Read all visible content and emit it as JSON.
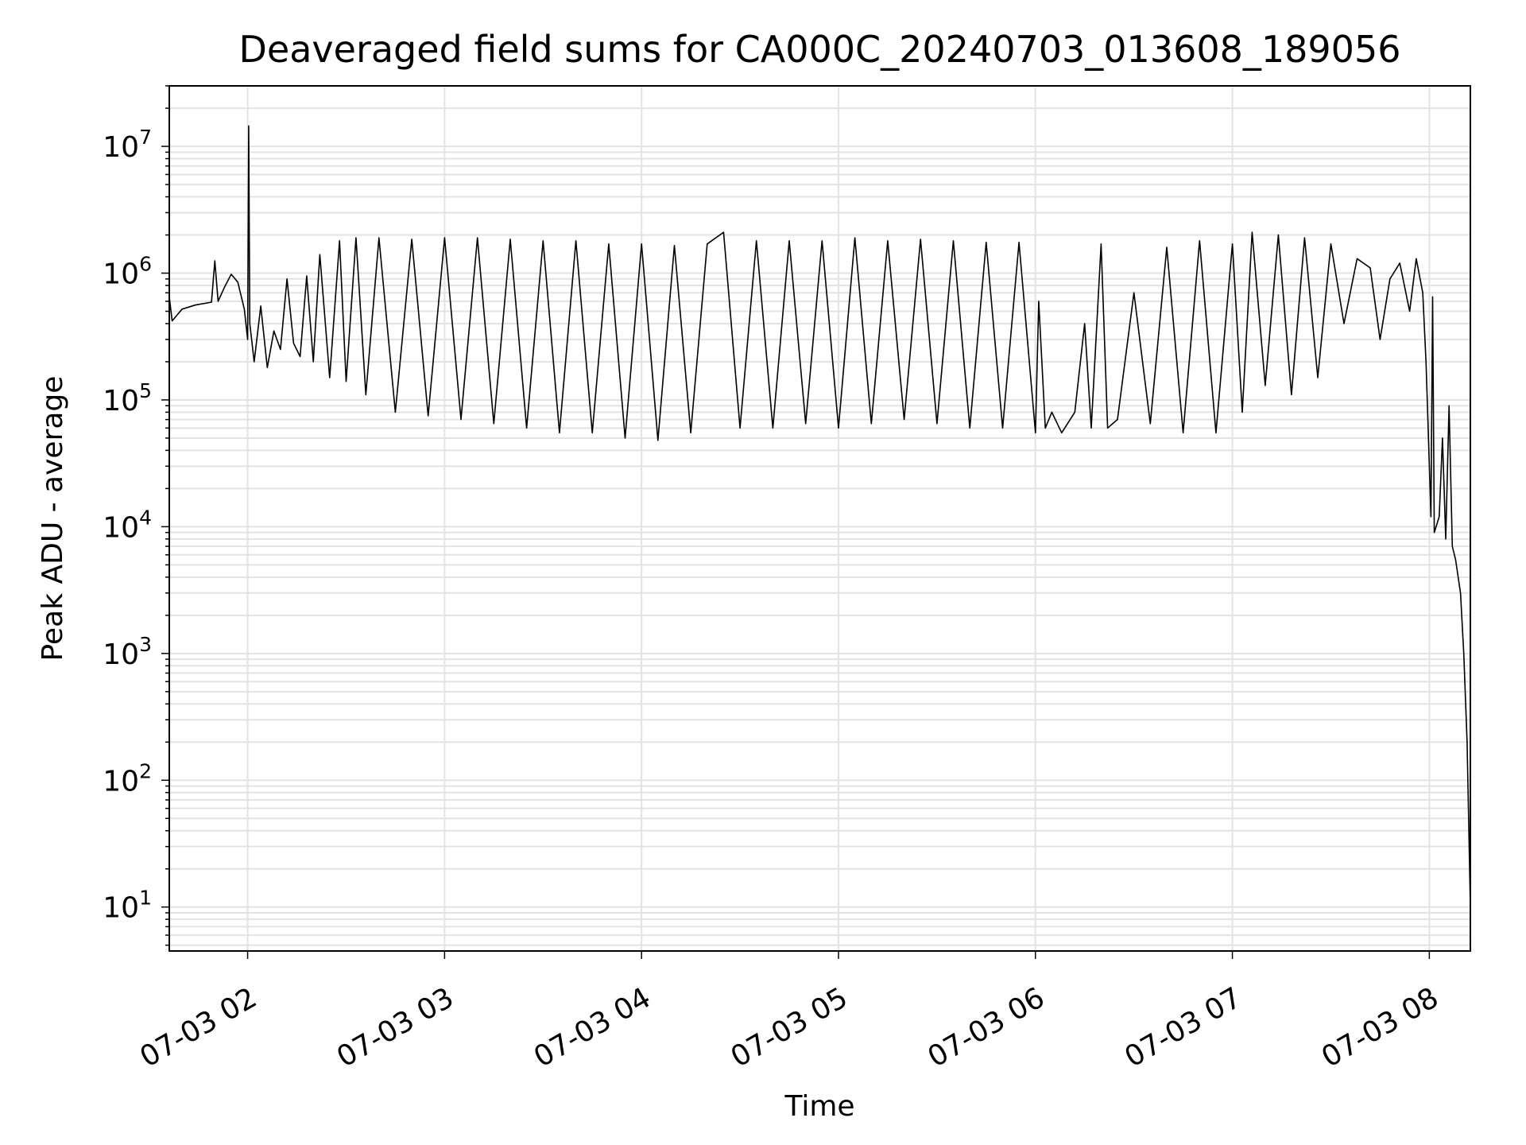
{
  "chart_data": {
    "type": "line",
    "title": "Deaveraged field sums for CA000C_20240703_013608_189056",
    "xlabel": "Time",
    "ylabel": "Peak ADU - average",
    "yscale": "log",
    "ylim": [
      4.5,
      30000000
    ],
    "xlim": [
      "2024-07-03 01:36:08",
      "2024-07-03 08:12:30"
    ],
    "grid": true,
    "x_ticks": [
      {
        "value": "2024-07-03 02:00",
        "label": "07-03 02"
      },
      {
        "value": "2024-07-03 03:00",
        "label": "07-03 03"
      },
      {
        "value": "2024-07-03 04:00",
        "label": "07-03 04"
      },
      {
        "value": "2024-07-03 05:00",
        "label": "07-03 05"
      },
      {
        "value": "2024-07-03 06:00",
        "label": "07-03 06"
      },
      {
        "value": "2024-07-03 07:00",
        "label": "07-03 07"
      },
      {
        "value": "2024-07-03 08:00",
        "label": "07-03 08"
      }
    ],
    "y_ticks": [
      {
        "value": 10,
        "base": "10",
        "exp": "1"
      },
      {
        "value": 100,
        "base": "10",
        "exp": "2"
      },
      {
        "value": 1000,
        "base": "10",
        "exp": "3"
      },
      {
        "value": 10000,
        "base": "10",
        "exp": "4"
      },
      {
        "value": 100000,
        "base": "10",
        "exp": "5"
      },
      {
        "value": 1000000,
        "base": "10",
        "exp": "6"
      },
      {
        "value": 10000000,
        "base": "10",
        "exp": "7"
      }
    ],
    "series": [
      {
        "color": "#000000",
        "points": [
          [
            "2024-07-03 01:36:08",
            650000
          ],
          [
            "2024-07-03 01:37:00",
            420000
          ],
          [
            "2024-07-03 01:40:00",
            520000
          ],
          [
            "2024-07-03 01:44:00",
            560000
          ],
          [
            "2024-07-03 01:49:00",
            590000
          ],
          [
            "2024-07-03 01:50:00",
            1250000
          ],
          [
            "2024-07-03 01:51:00",
            600000
          ],
          [
            "2024-07-03 01:53:00",
            780000
          ],
          [
            "2024-07-03 01:55:00",
            980000
          ],
          [
            "2024-07-03 01:57:00",
            850000
          ],
          [
            "2024-07-03 01:59:00",
            520000
          ],
          [
            "2024-07-03 02:00:00",
            300000
          ],
          [
            "2024-07-03 02:00:20",
            14500000
          ],
          [
            "2024-07-03 02:00:40",
            400000
          ],
          [
            "2024-07-03 02:02:00",
            200000
          ],
          [
            "2024-07-03 02:04:00",
            550000
          ],
          [
            "2024-07-03 02:06:00",
            180000
          ],
          [
            "2024-07-03 02:08:00",
            350000
          ],
          [
            "2024-07-03 02:10:00",
            250000
          ],
          [
            "2024-07-03 02:12:00",
            900000
          ],
          [
            "2024-07-03 02:14:00",
            280000
          ],
          [
            "2024-07-03 02:16:00",
            220000
          ],
          [
            "2024-07-03 02:18:00",
            950000
          ],
          [
            "2024-07-03 02:20:00",
            200000
          ],
          [
            "2024-07-03 02:22:00",
            1400000
          ],
          [
            "2024-07-03 02:25:00",
            150000
          ],
          [
            "2024-07-03 02:28:00",
            1800000
          ],
          [
            "2024-07-03 02:30:00",
            140000
          ],
          [
            "2024-07-03 02:33:00",
            1900000
          ],
          [
            "2024-07-03 02:36:00",
            110000
          ],
          [
            "2024-07-03 02:40:00",
            1900000
          ],
          [
            "2024-07-03 02:45:00",
            80000
          ],
          [
            "2024-07-03 02:50:00",
            1850000
          ],
          [
            "2024-07-03 02:55:00",
            75000
          ],
          [
            "2024-07-03 03:00:00",
            1900000
          ],
          [
            "2024-07-03 03:05:00",
            70000
          ],
          [
            "2024-07-03 03:10:00",
            1900000
          ],
          [
            "2024-07-03 03:15:00",
            65000
          ],
          [
            "2024-07-03 03:20:00",
            1850000
          ],
          [
            "2024-07-03 03:25:00",
            60000
          ],
          [
            "2024-07-03 03:30:00",
            1800000
          ],
          [
            "2024-07-03 03:35:00",
            55000
          ],
          [
            "2024-07-03 03:40:00",
            1800000
          ],
          [
            "2024-07-03 03:45:00",
            55000
          ],
          [
            "2024-07-03 03:50:00",
            1700000
          ],
          [
            "2024-07-03 03:55:00",
            50000
          ],
          [
            "2024-07-03 04:00:00",
            1700000
          ],
          [
            "2024-07-03 04:05:00",
            48000
          ],
          [
            "2024-07-03 04:10:00",
            1650000
          ],
          [
            "2024-07-03 04:15:00",
            55000
          ],
          [
            "2024-07-03 04:20:00",
            1700000
          ],
          [
            "2024-07-03 04:25:00",
            2100000
          ],
          [
            "2024-07-03 04:30:00",
            60000
          ],
          [
            "2024-07-03 04:35:00",
            1800000
          ],
          [
            "2024-07-03 04:40:00",
            60000
          ],
          [
            "2024-07-03 04:45:00",
            1800000
          ],
          [
            "2024-07-03 04:50:00",
            65000
          ],
          [
            "2024-07-03 04:55:00",
            1800000
          ],
          [
            "2024-07-03 05:00:00",
            60000
          ],
          [
            "2024-07-03 05:05:00",
            1900000
          ],
          [
            "2024-07-03 05:10:00",
            65000
          ],
          [
            "2024-07-03 05:15:00",
            1800000
          ],
          [
            "2024-07-03 05:20:00",
            70000
          ],
          [
            "2024-07-03 05:25:00",
            1850000
          ],
          [
            "2024-07-03 05:30:00",
            65000
          ],
          [
            "2024-07-03 05:35:00",
            1800000
          ],
          [
            "2024-07-03 05:40:00",
            60000
          ],
          [
            "2024-07-03 05:45:00",
            1750000
          ],
          [
            "2024-07-03 05:50:00",
            60000
          ],
          [
            "2024-07-03 05:55:00",
            1750000
          ],
          [
            "2024-07-03 06:00:00",
            55000
          ],
          [
            "2024-07-03 06:01:00",
            600000
          ],
          [
            "2024-07-03 06:03:00",
            60000
          ],
          [
            "2024-07-03 06:05:00",
            80000
          ],
          [
            "2024-07-03 06:08:00",
            55000
          ],
          [
            "2024-07-03 06:12:00",
            80000
          ],
          [
            "2024-07-03 06:15:00",
            400000
          ],
          [
            "2024-07-03 06:17:00",
            60000
          ],
          [
            "2024-07-03 06:20:00",
            1700000
          ],
          [
            "2024-07-03 06:22:00",
            60000
          ],
          [
            "2024-07-03 06:25:00",
            70000
          ],
          [
            "2024-07-03 06:30:00",
            700000
          ],
          [
            "2024-07-03 06:35:00",
            65000
          ],
          [
            "2024-07-03 06:40:00",
            1600000
          ],
          [
            "2024-07-03 06:45:00",
            55000
          ],
          [
            "2024-07-03 06:50:00",
            1800000
          ],
          [
            "2024-07-03 06:55:00",
            55000
          ],
          [
            "2024-07-03 07:00:00",
            1700000
          ],
          [
            "2024-07-03 07:03:00",
            80000
          ],
          [
            "2024-07-03 07:06:00",
            2100000
          ],
          [
            "2024-07-03 07:10:00",
            130000
          ],
          [
            "2024-07-03 07:14:00",
            2000000
          ],
          [
            "2024-07-03 07:18:00",
            110000
          ],
          [
            "2024-07-03 07:22:00",
            1900000
          ],
          [
            "2024-07-03 07:26:00",
            150000
          ],
          [
            "2024-07-03 07:30:00",
            1700000
          ],
          [
            "2024-07-03 07:34:00",
            400000
          ],
          [
            "2024-07-03 07:38:00",
            1300000
          ],
          [
            "2024-07-03 07:42:00",
            1100000
          ],
          [
            "2024-07-03 07:45:00",
            300000
          ],
          [
            "2024-07-03 07:48:00",
            900000
          ],
          [
            "2024-07-03 07:51:00",
            1200000
          ],
          [
            "2024-07-03 07:54:00",
            500000
          ],
          [
            "2024-07-03 07:56:00",
            1300000
          ],
          [
            "2024-07-03 07:58:00",
            700000
          ],
          [
            "2024-07-03 07:59:00",
            200000
          ],
          [
            "2024-07-03 08:00:00",
            30000
          ],
          [
            "2024-07-03 08:00:30",
            12000
          ],
          [
            "2024-07-03 08:01:00",
            650000
          ],
          [
            "2024-07-03 08:01:30",
            9000
          ],
          [
            "2024-07-03 08:03:00",
            12000
          ],
          [
            "2024-07-03 08:04:00",
            50000
          ],
          [
            "2024-07-03 08:05:00",
            8000
          ],
          [
            "2024-07-03 08:06:00",
            90000
          ],
          [
            "2024-07-03 08:07:00",
            7000
          ],
          [
            "2024-07-03 08:08:00",
            5500
          ],
          [
            "2024-07-03 08:09:30",
            3000
          ],
          [
            "2024-07-03 08:10:30",
            1000
          ],
          [
            "2024-07-03 08:11:30",
            200
          ],
          [
            "2024-07-03 08:12:30",
            10
          ]
        ]
      }
    ]
  }
}
